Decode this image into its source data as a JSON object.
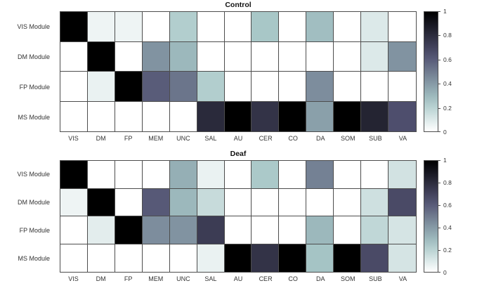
{
  "chart_data": [
    {
      "type": "heatmap",
      "title": "Control",
      "rows": [
        "VIS Module",
        "DM Module",
        "FP Module",
        "MS Module"
      ],
      "columns": [
        "VIS",
        "DM",
        "FP",
        "MEM",
        "UNC",
        "SAL",
        "AU",
        "CER",
        "CO",
        "DA",
        "SOM",
        "SUB",
        "VA"
      ],
      "values": [
        [
          1,
          0.05,
          0.05,
          0,
          0.22,
          0,
          0,
          0.25,
          0,
          0.28,
          0,
          0.1,
          0
        ],
        [
          0,
          1,
          0,
          0.42,
          0.3,
          0,
          0,
          0,
          0,
          0,
          0,
          0.1,
          0.42
        ],
        [
          0,
          0.06,
          1,
          0.6,
          0.52,
          0.22,
          0,
          0,
          0,
          0.44,
          0,
          0,
          0
        ],
        [
          0,
          0,
          0,
          0,
          0,
          0.81,
          1,
          0.77,
          1,
          0.38,
          1,
          0.84,
          0.65
        ]
      ],
      "vmin": 0,
      "vmax": 1,
      "colormap": "bone reversed (white 0 -> teal -> slate -> black 1)",
      "grid": "on",
      "legend_position": "colorbar right"
    },
    {
      "type": "heatmap",
      "title": "Deaf",
      "rows": [
        "VIS Module",
        "DM Module",
        "FP Module",
        "MS Module"
      ],
      "columns": [
        "VIS",
        "DM",
        "FP",
        "MEM",
        "UNC",
        "SAL",
        "AU",
        "CER",
        "CO",
        "DA",
        "SOM",
        "SUB",
        "VA"
      ],
      "values": [
        [
          1,
          0,
          0,
          0,
          0.33,
          0.06,
          0,
          0.24,
          0,
          0.48,
          0,
          0,
          0.13
        ],
        [
          0.05,
          1,
          0,
          0.61,
          0.3,
          0.16,
          0,
          0,
          0,
          0,
          0,
          0.14,
          0.67
        ],
        [
          0,
          0.08,
          1,
          0.44,
          0.42,
          0.73,
          0,
          0,
          0,
          0.3,
          0,
          0.18,
          0.12
        ],
        [
          0,
          0,
          0,
          0,
          0,
          0.06,
          1,
          0.77,
          1,
          0.26,
          1,
          0.67,
          0.12
        ]
      ],
      "vmin": 0,
      "vmax": 1,
      "colormap": "bone reversed (white 0 -> teal -> slate -> black 1)",
      "grid": "on",
      "legend_position": "colorbar right"
    }
  ],
  "colorbar": {
    "ticks": [
      {
        "label": "1",
        "value": 1
      },
      {
        "label": "0.8",
        "value": 0.8
      },
      {
        "label": "0.6",
        "value": 0.6
      },
      {
        "label": "0.4",
        "value": 0.4
      },
      {
        "label": "0.2",
        "value": 0.2
      },
      {
        "label": "0",
        "value": 0
      }
    ]
  },
  "colors": {
    "grid_line": "#4d4d4d",
    "label_text": "#333333",
    "title_text": "#111111",
    "background": "#ffffff"
  }
}
